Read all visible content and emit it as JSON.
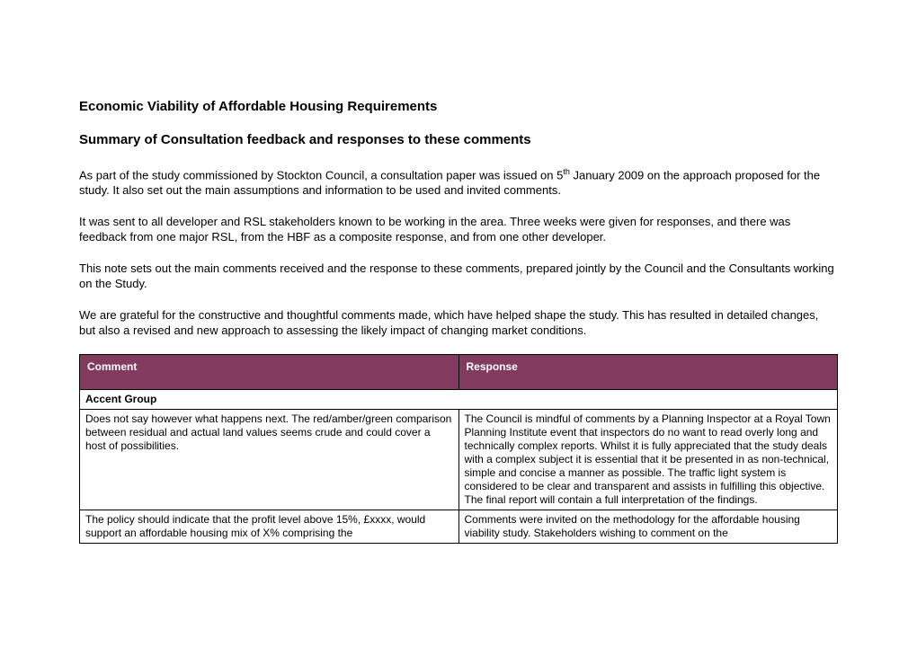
{
  "title": "Economic Viability of Affordable Housing Requirements",
  "subtitle": "Summary of Consultation feedback and responses to these comments",
  "paragraphs": {
    "p1a": "As part of the study commissioned by Stockton Council, a consultation paper was issued on 5",
    "p1sup": "th",
    "p1b": " January 2009 on the approach proposed for the study.  It also set out the main assumptions and information to be used and invited comments.",
    "p2": "It was sent to all developer and RSL stakeholders known to be working in the area.  Three weeks were given for responses, and there was feedback from one major RSL, from the HBF as a composite response, and from one other developer.",
    "p3": "This note sets out the main comments received and the response to these comments, prepared jointly by the Council and the Consultants working on the Study.",
    "p4": "We are grateful for the constructive and thoughtful comments made, which have helped shape the study.  This has resulted in detailed changes, but also a revised and new approach to assessing the likely impact of changing market conditions."
  },
  "table": {
    "headers": {
      "comment": "Comment",
      "response": "Response"
    },
    "group": "Accent Group",
    "rows": [
      {
        "comment": "Does not say however what happens next. The red/amber/green comparison between residual and actual land values seems crude and could cover a host of possibilities.",
        "response": "The Council is mindful of comments by a Planning Inspector at a Royal Town Planning Institute event that inspectors do no want to read overly long and technically complex reports. Whilst it is fully appreciated that the study deals with a complex subject it is essential that it be presented in as non-technical, simple and concise a manner as possible. The traffic light system is considered to be clear and transparent and assists in fulfilling this objective.  The final report will contain a full interpretation of the findings."
      },
      {
        "comment": "The policy should indicate that the profit level above 15%, £xxxx, would support an affordable housing mix of X% comprising the",
        "response": "Comments were invited on the methodology for the affordable housing viability study. Stakeholders wishing to comment on the"
      }
    ]
  },
  "colors": {
    "header_bg": "#823a5f",
    "header_text": "#ffffff",
    "border": "#000000",
    "body_text": "#000000",
    "background": "#ffffff"
  }
}
